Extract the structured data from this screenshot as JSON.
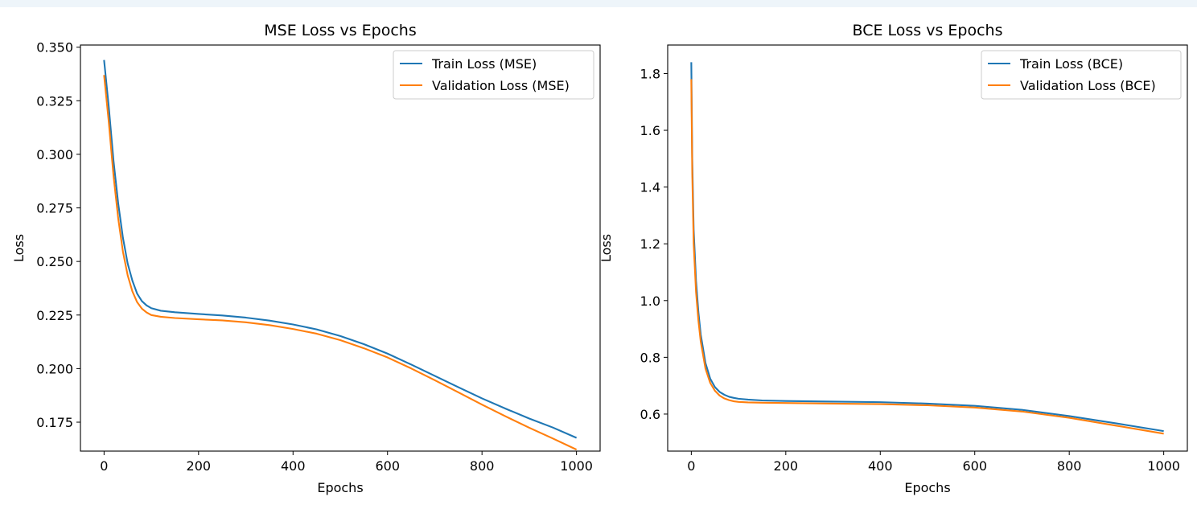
{
  "chart_data": [
    {
      "type": "line",
      "title": "MSE Loss vs Epochs",
      "xlabel": "Epochs",
      "ylabel": "Loss",
      "xlim": [
        -50,
        1050
      ],
      "ylim": [
        0.1615,
        0.351
      ],
      "xticks": [
        0,
        200,
        400,
        600,
        800,
        1000
      ],
      "yticks": [
        0.175,
        0.2,
        0.225,
        0.25,
        0.275,
        0.3,
        0.325,
        0.35
      ],
      "ytick_labels": [
        "0.175",
        "0.200",
        "0.225",
        "0.250",
        "0.275",
        "0.300",
        "0.325",
        "0.350"
      ],
      "grid": false,
      "legend": "top-right",
      "series": [
        {
          "name": "Train Loss (MSE)",
          "color": "#1f77b4",
          "x": [
            0,
            10,
            20,
            30,
            40,
            50,
            60,
            70,
            80,
            90,
            100,
            120,
            150,
            200,
            250,
            300,
            350,
            400,
            450,
            500,
            550,
            600,
            650,
            700,
            750,
            800,
            850,
            900,
            950,
            1000
          ],
          "y": [
            0.344,
            0.322,
            0.297,
            0.277,
            0.261,
            0.249,
            0.241,
            0.235,
            0.2315,
            0.2295,
            0.2282,
            0.227,
            0.2263,
            0.2255,
            0.2248,
            0.2238,
            0.2224,
            0.2206,
            0.2183,
            0.2152,
            0.2114,
            0.207,
            0.2019,
            0.1966,
            0.1913,
            0.1861,
            0.1813,
            0.1767,
            0.1725,
            0.1677
          ]
        },
        {
          "name": "Validation Loss (MSE)",
          "color": "#ff7f0e",
          "x": [
            0,
            10,
            20,
            30,
            40,
            50,
            60,
            70,
            80,
            90,
            100,
            120,
            150,
            200,
            250,
            300,
            350,
            400,
            450,
            500,
            550,
            600,
            650,
            700,
            750,
            800,
            850,
            900,
            950,
            1000
          ],
          "y": [
            0.337,
            0.315,
            0.29,
            0.27,
            0.2545,
            0.2435,
            0.236,
            0.231,
            0.228,
            0.2262,
            0.225,
            0.2242,
            0.2236,
            0.223,
            0.2225,
            0.2216,
            0.2203,
            0.2185,
            0.2163,
            0.2133,
            0.2095,
            0.2052,
            0.2001,
            0.1946,
            0.1889,
            0.1832,
            0.1777,
            0.1724,
            0.1674,
            0.1622
          ]
        }
      ]
    },
    {
      "type": "line",
      "title": "BCE Loss vs Epochs",
      "xlabel": "Epochs",
      "ylabel": "Loss",
      "xlim": [
        -50,
        1050
      ],
      "ylim": [
        0.4695,
        1.9005
      ],
      "xticks": [
        0,
        200,
        400,
        600,
        800,
        1000
      ],
      "yticks": [
        0.6,
        0.8,
        1.0,
        1.2,
        1.4,
        1.6,
        1.8
      ],
      "ytick_labels": [
        "0.6",
        "0.8",
        "1.0",
        "1.2",
        "1.4",
        "1.6",
        "1.8"
      ],
      "grid": false,
      "legend": "top-right",
      "series": [
        {
          "name": "Train Loss (BCE)",
          "color": "#1f77b4",
          "x": [
            0,
            2,
            5,
            10,
            15,
            20,
            30,
            40,
            50,
            60,
            70,
            80,
            90,
            100,
            120,
            150,
            200,
            300,
            400,
            500,
            600,
            700,
            800,
            900,
            1000
          ],
          "y": [
            1.84,
            1.5,
            1.25,
            1.07,
            0.96,
            0.88,
            0.78,
            0.725,
            0.695,
            0.678,
            0.668,
            0.661,
            0.657,
            0.654,
            0.651,
            0.648,
            0.646,
            0.644,
            0.642,
            0.637,
            0.629,
            0.615,
            0.593,
            0.567,
            0.54
          ]
        },
        {
          "name": "Validation Loss (BCE)",
          "color": "#ff7f0e",
          "x": [
            0,
            2,
            5,
            10,
            15,
            20,
            30,
            40,
            50,
            60,
            70,
            80,
            90,
            100,
            120,
            150,
            200,
            300,
            400,
            500,
            600,
            700,
            800,
            900,
            1000
          ],
          "y": [
            1.78,
            1.45,
            1.2,
            1.03,
            0.93,
            0.855,
            0.76,
            0.71,
            0.682,
            0.665,
            0.655,
            0.649,
            0.645,
            0.643,
            0.641,
            0.64,
            0.639,
            0.637,
            0.635,
            0.631,
            0.623,
            0.609,
            0.587,
            0.559,
            0.531
          ]
        }
      ]
    }
  ]
}
